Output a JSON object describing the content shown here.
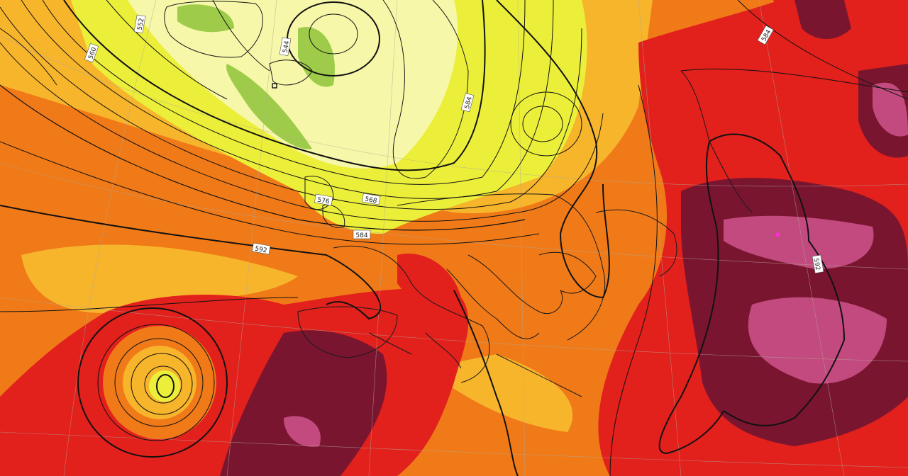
{
  "map": {
    "isoline_labels": [
      "552",
      "560",
      "568",
      "576",
      "584",
      "592",
      "544",
      "584",
      "592",
      "584"
    ],
    "colors": {
      "pale_yellow": "#f6f7a8",
      "yellow": "#ecef3a",
      "green": "#9ecc4a",
      "light_orange": "#f7b52c",
      "orange": "#f07a18",
      "red": "#e2201c",
      "dark_red": "#7a1530",
      "magenta": "#c24a7e",
      "contour": "#111111",
      "coast": "#1a1a1a"
    },
    "icons": [
      "contour-lines",
      "coastline",
      "graticule"
    ]
  }
}
